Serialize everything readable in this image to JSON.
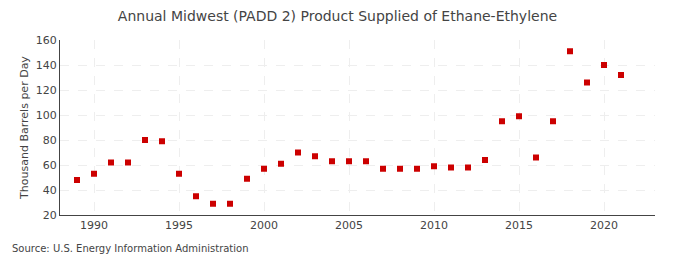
{
  "chart_data": {
    "type": "scatter",
    "title": "Annual Midwest (PADD 2) Product Supplied of Ethane-Ethylene",
    "ylabel": "Thousand Barrels per Day",
    "source": "Source: U.S. Energy Information Administration",
    "x": [
      1989,
      1990,
      1991,
      1992,
      1993,
      1994,
      1995,
      1996,
      1997,
      1998,
      1999,
      2000,
      2001,
      2002,
      2003,
      2004,
      2005,
      2006,
      2007,
      2008,
      2009,
      2010,
      2011,
      2012,
      2013,
      2014,
      2015,
      2016,
      2017,
      2018,
      2019,
      2020,
      2021
    ],
    "values": [
      48,
      53,
      62,
      62,
      80,
      79,
      53,
      35,
      29,
      29,
      49,
      57,
      61,
      70,
      67,
      63,
      63,
      63,
      57,
      57,
      57,
      59,
      58,
      58,
      64,
      95,
      99,
      66,
      95,
      151,
      126,
      140,
      132
    ],
    "color": "#cc0000",
    "marker": "square",
    "xlim": [
      1988.0,
      2023.0
    ],
    "ylim": [
      20,
      160
    ],
    "xticks": [
      1990,
      1995,
      2000,
      2005,
      2010,
      2015,
      2020
    ],
    "yticks": [
      20,
      40,
      60,
      80,
      100,
      120,
      140,
      160
    ],
    "grid": true
  }
}
